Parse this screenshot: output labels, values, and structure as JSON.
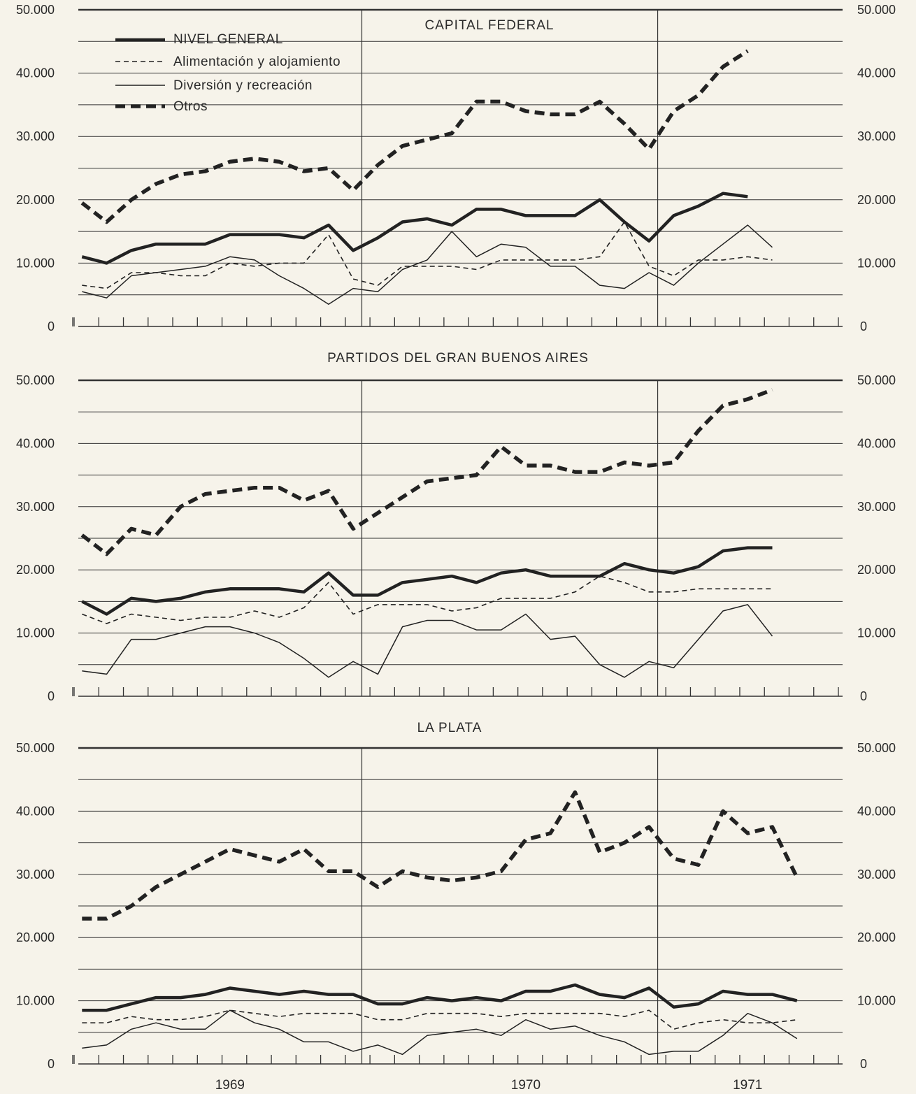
{
  "chart_data": {
    "type": "line",
    "x": [
      "1969-01",
      "1969-02",
      "1969-03",
      "1969-04",
      "1969-05",
      "1969-06",
      "1969-07",
      "1969-08",
      "1969-09",
      "1969-10",
      "1969-11",
      "1969-12",
      "1970-01",
      "1970-02",
      "1970-03",
      "1970-04",
      "1970-05",
      "1970-06",
      "1970-07",
      "1970-08",
      "1970-09",
      "1970-10",
      "1970-11",
      "1970-12",
      "1971-01",
      "1971-02",
      "1971-03",
      "1971-04",
      "1971-05",
      "1971-06",
      "1971-07"
    ],
    "year_labels": [
      {
        "label": "1969",
        "x": "1969-07"
      },
      {
        "label": "1970",
        "x": "1970-07"
      },
      {
        "label": "1971",
        "x": "1971-04"
      }
    ],
    "year_dividers": [
      "1969-12",
      "1970-12"
    ],
    "ylim": [
      0,
      50000
    ],
    "y_ticks": [
      "0",
      "10.000",
      "20.000",
      "30.000",
      "40.000",
      "50.000"
    ],
    "y_tick_values": [
      0,
      10000,
      20000,
      30000,
      40000,
      50000
    ],
    "grid": true,
    "legend": {
      "placement": "top-left",
      "entries": [
        {
          "label": "NIVEL GENERAL",
          "style": "thick"
        },
        {
          "label": "Alimentación y alojamiento",
          "style": "dashed"
        },
        {
          "label": "Diversión y recreación",
          "style": "thin"
        },
        {
          "label": "Otros",
          "style": "thick-dashed"
        }
      ]
    },
    "panels": [
      {
        "title": "CAPITAL FEDERAL",
        "series": [
          {
            "name": "NIVEL GENERAL",
            "values": [
              11000,
              10000,
              12000,
              13000,
              13000,
              13000,
              14500,
              14500,
              14500,
              14000,
              16000,
              12000,
              14000,
              16500,
              17000,
              16000,
              18500,
              18500,
              17500,
              17500,
              17500,
              20000,
              16500,
              13500,
              17500,
              19000,
              21000,
              20500
            ]
          },
          {
            "name": "Alimentación y alojamiento",
            "values": [
              6500,
              6000,
              8500,
              8500,
              8000,
              8000,
              10000,
              9500,
              10000,
              10000,
              14500,
              7500,
              6500,
              9500,
              9500,
              9500,
              9000,
              10500,
              10500,
              10500,
              10500,
              11000,
              16500,
              9500,
              8000,
              10500,
              10500,
              11000,
              10500
            ]
          },
          {
            "name": "Diversión y recreación",
            "values": [
              5500,
              4500,
              8000,
              8500,
              9000,
              9500,
              11000,
              10500,
              8000,
              6000,
              3500,
              6000,
              5500,
              9000,
              10500,
              15000,
              11000,
              13000,
              12500,
              9500,
              9500,
              6500,
              6000,
              8500,
              6500,
              10000,
              13000,
              16000,
              12500
            ]
          },
          {
            "name": "Otros",
            "values": [
              19500,
              16500,
              20000,
              22500,
              24000,
              24500,
              26000,
              26500,
              26000,
              24500,
              25000,
              21500,
              25500,
              28500,
              29500,
              30500,
              35500,
              35500,
              34000,
              33500,
              33500,
              35500,
              32000,
              28000,
              34000,
              36500,
              41000,
              43500
            ]
          }
        ]
      },
      {
        "title": "PARTIDOS DEL GRAN BUENOS AIRES",
        "series": [
          {
            "name": "NIVEL GENERAL",
            "values": [
              15000,
              13000,
              15500,
              15000,
              15500,
              16500,
              17000,
              17000,
              17000,
              16500,
              19500,
              16000,
              16000,
              18000,
              18500,
              19000,
              18000,
              19500,
              20000,
              19000,
              19000,
              19000,
              21000,
              20000,
              19500,
              20500,
              23000,
              23500,
              23500
            ]
          },
          {
            "name": "Alimentación y alojamiento",
            "values": [
              13000,
              11500,
              13000,
              12500,
              12000,
              12500,
              12500,
              13500,
              12500,
              14000,
              18000,
              13000,
              14500,
              14500,
              14500,
              13500,
              14000,
              15500,
              15500,
              15500,
              16500,
              19000,
              18000,
              16500,
              16500,
              17000,
              17000,
              17000,
              17000
            ]
          },
          {
            "name": "Diversión y recreación",
            "values": [
              4000,
              3500,
              9000,
              9000,
              10000,
              11000,
              11000,
              10000,
              8500,
              6000,
              3000,
              5500,
              3500,
              11000,
              12000,
              12000,
              10500,
              10500,
              13000,
              9000,
              9500,
              5000,
              3000,
              5500,
              4500,
              9000,
              13500,
              14500,
              9500
            ]
          },
          {
            "name": "Otros",
            "values": [
              25500,
              22500,
              26500,
              25500,
              30000,
              32000,
              32500,
              33000,
              33000,
              31000,
              32500,
              26500,
              29000,
              31500,
              34000,
              34500,
              35000,
              39500,
              36500,
              36500,
              35500,
              35500,
              37000,
              36500,
              37000,
              42000,
              46000,
              47000,
              48500
            ]
          }
        ]
      },
      {
        "title": "LA PLATA",
        "series": [
          {
            "name": "NIVEL GENERAL",
            "values": [
              8500,
              8500,
              9500,
              10500,
              10500,
              11000,
              12000,
              11500,
              11000,
              11500,
              11000,
              11000,
              9500,
              9500,
              10500,
              10000,
              10500,
              10000,
              11500,
              11500,
              12500,
              11000,
              10500,
              12000,
              9000,
              9500,
              11500,
              11000,
              11000,
              10000
            ]
          },
          {
            "name": "Alimentación y alojamiento",
            "values": [
              6500,
              6500,
              7500,
              7000,
              7000,
              7500,
              8500,
              8000,
              7500,
              8000,
              8000,
              8000,
              7000,
              7000,
              8000,
              8000,
              8000,
              7500,
              8000,
              8000,
              8000,
              8000,
              7500,
              8500,
              5500,
              6500,
              7000,
              6500,
              6500,
              7000
            ]
          },
          {
            "name": "Diversión y recreación",
            "values": [
              2500,
              3000,
              5500,
              6500,
              5500,
              5500,
              8500,
              6500,
              5500,
              3500,
              3500,
              2000,
              3000,
              1500,
              4500,
              5000,
              5500,
              4500,
              7000,
              5500,
              6000,
              4500,
              3500,
              1500,
              2000,
              2000,
              4500,
              8000,
              6500,
              4000
            ]
          },
          {
            "name": "Otros",
            "values": [
              23000,
              23000,
              25000,
              28000,
              30000,
              32000,
              34000,
              33000,
              32000,
              34000,
              30500,
              30500,
              28000,
              30500,
              29500,
              29000,
              29500,
              30500,
              35500,
              36500,
              43000,
              33500,
              35000,
              37500,
              32500,
              31500,
              40000,
              36500,
              37500,
              29500
            ]
          }
        ]
      }
    ]
  }
}
